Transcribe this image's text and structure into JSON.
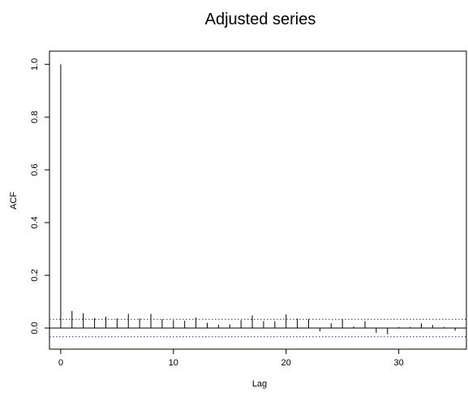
{
  "chart_data": {
    "type": "bar",
    "title": "Adjusted series",
    "xlabel": "Lag",
    "ylabel": "ACF",
    "xlim": [
      -1,
      36
    ],
    "ylim": [
      -0.08,
      1.05
    ],
    "x_ticks": [
      0,
      10,
      20,
      30
    ],
    "x_tick_labels": [
      "0",
      "10",
      "20",
      "30"
    ],
    "y_ticks": [
      0.0,
      0.2,
      0.4,
      0.6,
      0.8,
      1.0
    ],
    "y_tick_labels": [
      "0.0",
      "0.2",
      "0.4",
      "0.6",
      "0.8",
      "1.0"
    ],
    "confidence_bound": 0.033,
    "x": [
      0,
      1,
      2,
      3,
      4,
      5,
      6,
      7,
      8,
      9,
      10,
      11,
      12,
      13,
      14,
      15,
      16,
      17,
      18,
      19,
      20,
      21,
      22,
      23,
      24,
      25,
      26,
      27,
      28,
      29,
      30,
      31,
      32,
      33,
      34,
      35
    ],
    "values": [
      1.0,
      0.065,
      0.056,
      0.038,
      0.043,
      0.036,
      0.054,
      0.036,
      0.054,
      0.034,
      0.03,
      0.028,
      0.04,
      0.02,
      0.012,
      0.014,
      0.03,
      0.048,
      0.026,
      0.026,
      0.052,
      0.036,
      0.034,
      -0.012,
      0.018,
      0.034,
      0.006,
      0.026,
      -0.018,
      -0.024,
      0.004,
      0.004,
      0.018,
      0.012,
      0.004,
      -0.01
    ],
    "grid": false,
    "colors": {
      "bars": "#000000",
      "axes": "#000000",
      "confidence": "#2323ff"
    }
  }
}
